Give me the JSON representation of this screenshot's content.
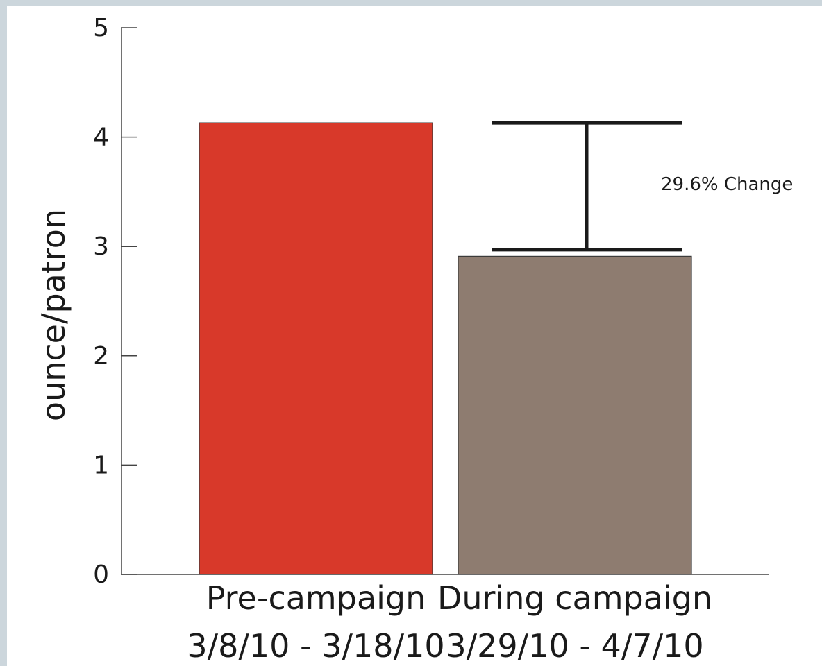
{
  "chart_data": {
    "type": "bar",
    "title": "",
    "xlabel": "",
    "ylabel": "ounce/patron",
    "ylim": [
      0,
      5
    ],
    "yticks": [
      0,
      1,
      2,
      3,
      4,
      5
    ],
    "grid": false,
    "categories": [
      {
        "line1": "Pre-campaign",
        "line2": "3/8/10 - 3/18/10"
      },
      {
        "line1": "During campaign",
        "line2": "3/29/10 - 4/7/10"
      }
    ],
    "values": [
      4.13,
      2.91
    ],
    "colors": [
      "#d8392a",
      "#8e7c70"
    ],
    "annotation": {
      "text": "29.6% Change",
      "from_value": 4.13,
      "to_value": 2.97
    }
  }
}
